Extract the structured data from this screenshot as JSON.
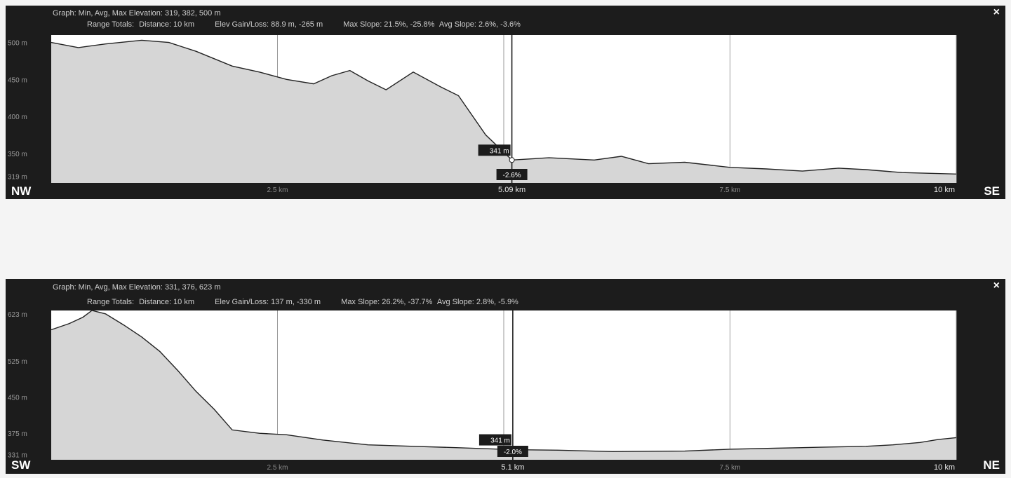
{
  "panels": [
    {
      "header_line1": "Graph: Min, Avg, Max  Elevation: 319, 382, 500 m",
      "range_label": "Range Totals:",
      "distance": "Distance: 10 km",
      "elev": "Elev Gain/Loss: 88.9 m, -265 m",
      "max_slope": "Max Slope: 21.5%, -25.8%",
      "avg_slope": "Avg Slope: 2.6%, -3.6%",
      "close_label": "×",
      "dir_left": "NW",
      "dir_right": "SE",
      "cursor_elev": "341 m",
      "cursor_slope": "-2.6%",
      "cursor_km": "5.09 km"
    },
    {
      "header_line1": "Graph: Min, Avg, Max  Elevation: 331, 376, 623 m",
      "range_label": "Range Totals:",
      "distance": "Distance: 10 km",
      "elev": "Elev Gain/Loss: 137 m, -330 m",
      "max_slope": "Max Slope: 26.2%, -37.7%",
      "avg_slope": "Avg Slope: 2.8%, -5.9%",
      "close_label": "×",
      "dir_left": "SW",
      "dir_right": "NE",
      "cursor_elev": "341 m",
      "cursor_slope": "-2.0%",
      "cursor_km": "5.1 km"
    }
  ],
  "chart_data": [
    {
      "type": "area",
      "xlabel": "",
      "ylabel": "",
      "x_ticks": [
        "2.5 km",
        "7.5 km",
        "10 km"
      ],
      "y_ticks": [
        "500 m",
        "450 m",
        "400 m",
        "350 m",
        "319 m"
      ],
      "xlim": [
        0,
        10
      ],
      "ylim": [
        310,
        510
      ],
      "cursor_x": 5.09,
      "x": [
        0,
        0.3,
        0.6,
        1.0,
        1.3,
        1.6,
        2.0,
        2.3,
        2.6,
        2.9,
        3.1,
        3.3,
        3.5,
        3.7,
        4.0,
        4.3,
        4.5,
        4.8,
        5.09,
        5.5,
        6.0,
        6.3,
        6.6,
        7.0,
        7.5,
        7.9,
        8.3,
        8.7,
        9.0,
        9.4,
        10.0
      ],
      "y": [
        500,
        493,
        498,
        503,
        500,
        488,
        468,
        460,
        450,
        444,
        455,
        462,
        448,
        436,
        460,
        440,
        428,
        375,
        341,
        344,
        341,
        346,
        336,
        338,
        331,
        329,
        326,
        330,
        328,
        324,
        322
      ]
    },
    {
      "type": "area",
      "xlabel": "",
      "ylabel": "",
      "x_ticks": [
        "2.5 km",
        "7.5 km",
        "10 km"
      ],
      "y_ticks": [
        "623 m",
        "525 m",
        "450 m",
        "375 m",
        "331 m"
      ],
      "xlim": [
        0,
        10
      ],
      "ylim": [
        320,
        630
      ],
      "cursor_x": 5.1,
      "x": [
        0,
        0.2,
        0.35,
        0.45,
        0.6,
        0.8,
        1.0,
        1.2,
        1.4,
        1.6,
        1.8,
        2.0,
        2.3,
        2.6,
        3.0,
        3.5,
        4.0,
        4.5,
        5.1,
        5.6,
        6.2,
        7.0,
        7.5,
        8.0,
        8.5,
        9.0,
        9.3,
        9.6,
        9.8,
        10.0
      ],
      "y": [
        590,
        603,
        616,
        630,
        623,
        600,
        575,
        545,
        505,
        462,
        425,
        382,
        375,
        372,
        361,
        351,
        348,
        345,
        341,
        340,
        337,
        338,
        342,
        344,
        346,
        348,
        351,
        356,
        362,
        366
      ]
    }
  ]
}
